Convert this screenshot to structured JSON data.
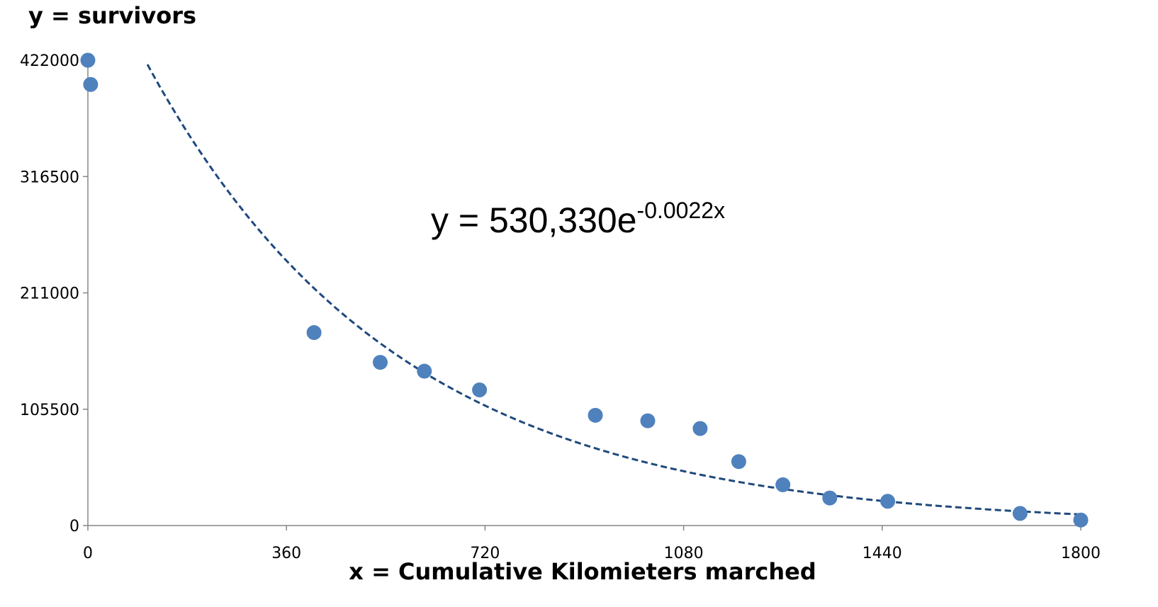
{
  "chart_data": {
    "type": "scatter",
    "ylabel": "y = survivors",
    "xlabel": "x = Cumulative Kilomieters  marched",
    "xlim": [
      0,
      1800
    ],
    "ylim": [
      0,
      422000
    ],
    "x_ticks": [
      "0",
      "360",
      "720",
      "1080",
      "1440",
      "1800"
    ],
    "x_tick_values": [
      0,
      360,
      720,
      1080,
      1440,
      1800
    ],
    "y_ticks": [
      "0",
      "105500",
      "211000",
      "316500",
      "422000"
    ],
    "y_tick_values": [
      0,
      105500,
      211000,
      316500,
      422000
    ],
    "grid": false,
    "legend": "none",
    "marker_color": "#4f81bd",
    "trendline_color": "#1f497d",
    "series": [
      {
        "x": [
          0,
          5,
          410,
          530,
          610,
          710,
          920,
          1015,
          1110,
          1180,
          1260,
          1345,
          1450,
          1690,
          1800
        ],
        "y": [
          422000,
          400000,
          175000,
          148000,
          140000,
          123000,
          100000,
          95000,
          88000,
          58000,
          37000,
          25000,
          22000,
          11000,
          5000
        ]
      }
    ],
    "trendline": {
      "type": "exponential",
      "a": 530330,
      "b": -0.0022,
      "x_range": [
        108,
        1800
      ]
    },
    "equation": {
      "prefix": "y = 530,330e",
      "exponent": "-0.0022x"
    }
  }
}
